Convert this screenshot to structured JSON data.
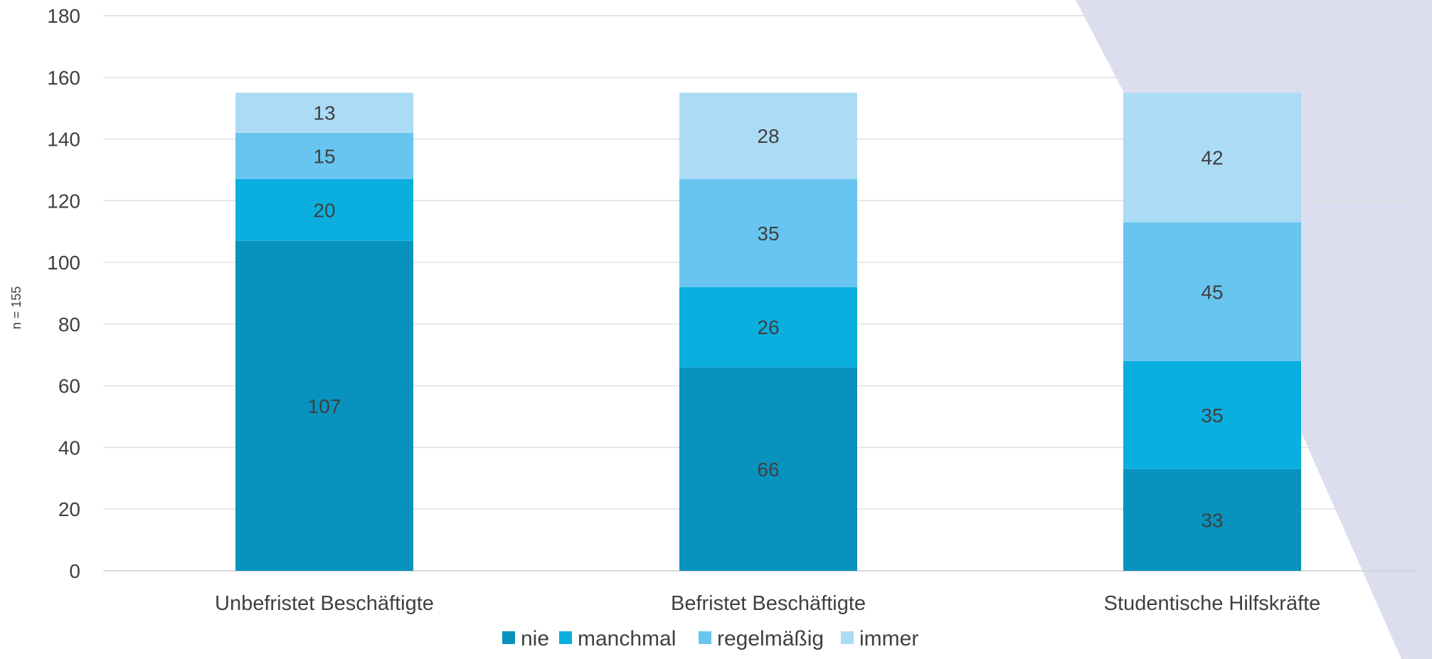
{
  "chart_data": {
    "type": "bar",
    "stacked": true,
    "categories": [
      "Unbefristet Beschäftigte",
      "Befristet Beschäftigte",
      "Studentische Hilfskräfte"
    ],
    "series": [
      {
        "name": "nie",
        "values": [
          107,
          66,
          33
        ],
        "color": "#0893be"
      },
      {
        "name": "manchmal",
        "values": [
          20,
          26,
          35
        ],
        "color": "#0aafe0"
      },
      {
        "name": "regelmäßig",
        "values": [
          15,
          35,
          45
        ],
        "color": "#68c5ef"
      },
      {
        "name": "immer",
        "values": [
          13,
          28,
          42
        ],
        "color": "#acdbf5"
      }
    ],
    "ylabel": "n = 155",
    "xlabel": "",
    "ylim": [
      0,
      180
    ],
    "yticks": [
      0,
      20,
      40,
      60,
      80,
      100,
      120,
      140,
      160,
      180
    ],
    "grid": true,
    "legend_position": "bottom",
    "background_accent_color": "#dcdef0"
  }
}
